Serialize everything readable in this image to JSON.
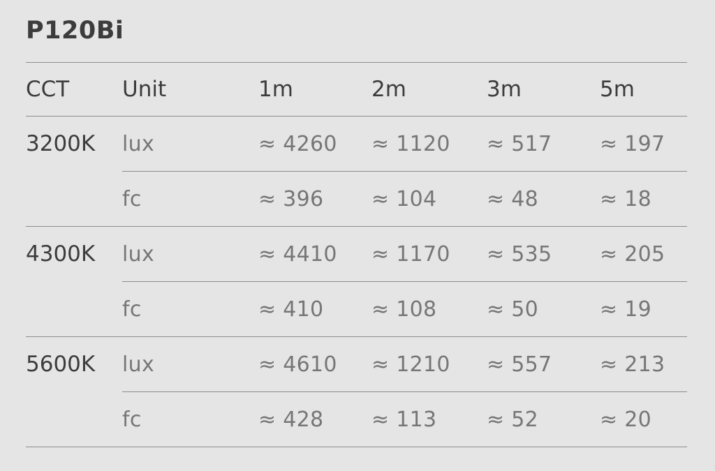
{
  "title": "P120Bi",
  "colors": {
    "background": "#e5e5e5",
    "heading_text": "#3c3c3c",
    "value_text": "#767676",
    "divider": "#8c8c8c"
  },
  "table": {
    "headers": [
      "CCT",
      "Unit",
      "1m",
      "2m",
      "3m",
      "5m"
    ],
    "sections": [
      {
        "cct": "3200K",
        "rows": [
          {
            "unit": "lux",
            "values": [
              "≈ 4260",
              "≈ 1120",
              "≈ 517",
              "≈ 197"
            ]
          },
          {
            "unit": "fc",
            "values": [
              "≈ 396",
              "≈ 104",
              "≈ 48",
              "≈ 18"
            ]
          }
        ]
      },
      {
        "cct": "4300K",
        "rows": [
          {
            "unit": "lux",
            "values": [
              "≈ 4410",
              "≈ 1170",
              "≈ 535",
              "≈ 205"
            ]
          },
          {
            "unit": "fc",
            "values": [
              "≈ 410",
              "≈ 108",
              "≈ 50",
              "≈ 19"
            ]
          }
        ]
      },
      {
        "cct": "5600K",
        "rows": [
          {
            "unit": "lux",
            "values": [
              "≈ 4610",
              "≈ 1210",
              "≈ 557",
              "≈ 213"
            ]
          },
          {
            "unit": "fc",
            "values": [
              "≈ 428",
              "≈ 113",
              "≈ 52",
              "≈ 20"
            ]
          }
        ]
      }
    ]
  }
}
